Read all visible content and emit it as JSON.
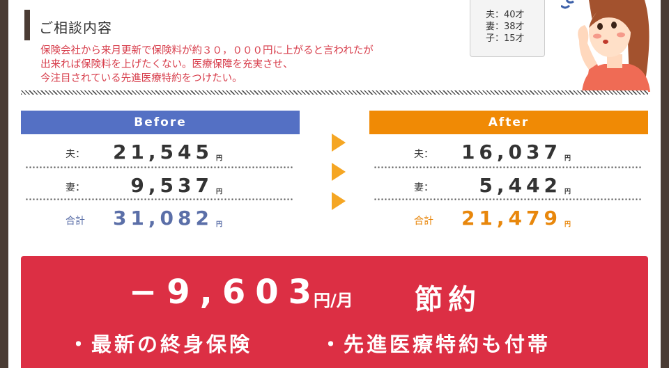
{
  "colors": {
    "background": "#4a3c34",
    "before_blue": "#5470c4",
    "after_orange": "#f08a05",
    "total_before": "#5b6fa8",
    "total_after": "#e8870c",
    "accent_red": "#dc2f44",
    "desc_red": "#d73d4b"
  },
  "consultation": {
    "title": "ご相談内容",
    "lines": [
      "保険会社から来月更新で保険料が約３０，０００円に上がると言われたが",
      "出来れば保険料を上げたくない。医療保障を充実させ、",
      "今注目されている先進医療特約をつけたい。"
    ]
  },
  "family": {
    "husband": "夫：40才",
    "wife": "妻：38才",
    "child": "子：15才"
  },
  "before": {
    "header": "Before",
    "husband_label": "夫：",
    "husband_value": "21,545",
    "wife_label": "妻：",
    "wife_value": "9,537",
    "total_label": "合計",
    "total_value": "31,082",
    "yen": "円"
  },
  "after": {
    "header": "After",
    "husband_label": "夫：",
    "husband_value": "16,037",
    "wife_label": "妻：",
    "wife_value": "5,442",
    "total_label": "合計",
    "total_value": "21,479",
    "yen": "円"
  },
  "savings": {
    "amount": "−9,603",
    "unit": "円/月",
    "word": "節約",
    "feature1": "・最新の終身保険",
    "feature2": "・先進医療特約も付帯"
  },
  "icons": [
    "arrow-right-icon",
    "woman-illustration"
  ]
}
